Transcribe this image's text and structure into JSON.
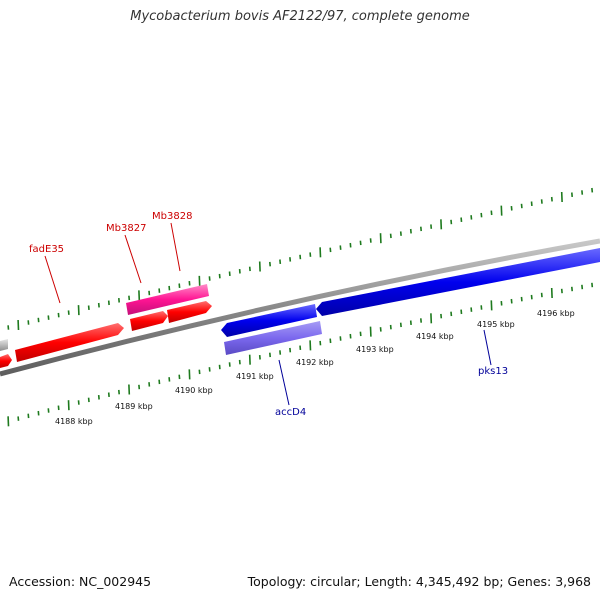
{
  "header": {
    "title": "Mycobacterium bovis AF2122/97, complete genome"
  },
  "footer": {
    "accession": "Accession: NC_002945",
    "summary": "Topology: circular; Length: 4,345,492 bp; Genes: 3,968"
  },
  "colors": {
    "backbone": "#8a8a8a",
    "ticks": "#1e7a1e",
    "forward_gene": "#ff0000",
    "reverse_gene": "#0000ee",
    "rna_gene": "#ff1493",
    "pseudo_gene": "#7b68ee",
    "other_gene": "#bbbbbb",
    "label_forward": "#cc0000",
    "label_reverse": "#000099"
  },
  "ruler": {
    "labels": [
      "4188 kbp",
      "4189 kbp",
      "4190 kbp",
      "4191 kbp",
      "4192 kbp",
      "4193 kbp",
      "4194 kbp",
      "4195 kbp",
      "4196 kbp"
    ]
  },
  "gene_labels": {
    "fadE35": "fadE35",
    "Mb3827": "Mb3827",
    "Mb3828": "Mb3828",
    "accD4": "accD4",
    "pks13": "pks13"
  }
}
